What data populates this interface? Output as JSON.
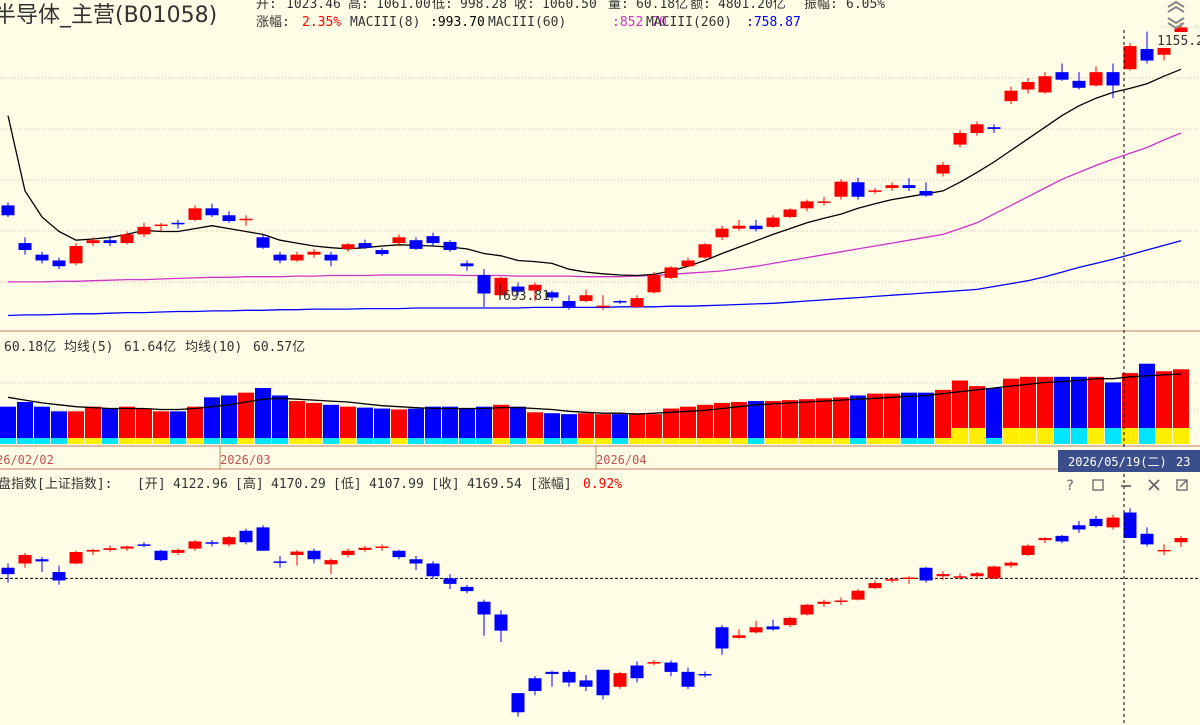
{
  "title": "半导体_主营(B01058)",
  "quote": {
    "open_label": "开:",
    "open": "1023.46",
    "high_label": "高:",
    "high": "1061.00",
    "low_label": "低:",
    "low": "998.28",
    "close_label": "收:",
    "close": "1060.50",
    "volume_label": "量:",
    "volume": "60.18亿",
    "amount_label": "额:",
    "amount": "4801.20亿",
    "amplitude_label": "振幅:",
    "amplitude": "6.05%",
    "change_label": "涨幅:",
    "change": "2.35%"
  },
  "ma": [
    {
      "label": "MACIII(8)",
      "value": ":993.70",
      "color": "#000000"
    },
    {
      "label": "MACIII(60)",
      "value": ":852.70",
      "color": "#CC33CC"
    },
    {
      "label": "MACIII(260)",
      "value": ":758.87",
      "color": "#0000FF"
    }
  ],
  "price_labels": {
    "low": "693.81",
    "high": "1155.22"
  },
  "volume_header": {
    "value": "60.18亿",
    "ma5_label": "均线(5)",
    "ma5": "61.64亿",
    "ma10_label": "均线(10)",
    "ma10": "60.57亿"
  },
  "dates": {
    "d1": "26/02/02",
    "d2": "2026/03",
    "d3": "2026/04",
    "cursor": "2026/05/19(二)",
    "cursor_tail": "23"
  },
  "index_header": {
    "prefix": "盘指数[上证指数]:",
    "open_label": "[开]",
    "open": "4122.96",
    "high_label": "[高]",
    "high": "4170.29",
    "low_label": "[低]",
    "low": "4107.99",
    "close_label": "[收]",
    "close": "4169.54",
    "change_label": "[涨幅]",
    "change": "0.92%"
  },
  "colors": {
    "up": "#FF0000",
    "down": "#0000FF",
    "bg": "#FFFDE6",
    "grid": "#E8B8A8",
    "vol_up_inner": "#FFEE00",
    "vol_down_inner": "#00E5FF",
    "ma8": "#000000",
    "ma60": "#CC33CC",
    "ma260": "#0000FF"
  },
  "icons": [
    "help-icon",
    "restore-icon",
    "minimize-icon",
    "close-icon",
    "maximize-icon",
    "chevron-up-icon",
    "chevron-down-icon"
  ],
  "chart_data": {
    "type": "candlestick",
    "price_range": [
      640,
      1175
    ],
    "ohlc": [
      [
        855,
        860,
        835,
        838
      ],
      [
        790,
        800,
        770,
        778
      ],
      [
        770,
        775,
        755,
        760
      ],
      [
        760,
        765,
        745,
        750
      ],
      [
        755,
        790,
        752,
        785
      ],
      [
        790,
        800,
        785,
        795
      ],
      [
        795,
        802,
        785,
        790
      ],
      [
        790,
        810,
        788,
        805
      ],
      [
        805,
        825,
        800,
        818
      ],
      [
        820,
        825,
        810,
        822
      ],
      [
        825,
        830,
        815,
        824
      ],
      [
        830,
        855,
        828,
        850
      ],
      [
        850,
        858,
        835,
        838
      ],
      [
        838,
        845,
        825,
        828
      ],
      [
        830,
        838,
        820,
        832
      ],
      [
        800,
        805,
        780,
        782
      ],
      [
        770,
        775,
        755,
        760
      ],
      [
        760,
        775,
        758,
        770
      ],
      [
        770,
        780,
        765,
        775
      ],
      [
        770,
        775,
        750,
        760
      ],
      [
        780,
        790,
        775,
        788
      ],
      [
        790,
        796,
        780,
        782
      ],
      [
        778,
        782,
        768,
        771
      ],
      [
        790,
        805,
        785,
        800
      ],
      [
        795,
        800,
        778,
        780
      ],
      [
        802,
        808,
        785,
        790
      ],
      [
        792,
        795,
        775,
        778
      ],
      [
        755,
        760,
        742,
        750
      ],
      [
        735,
        745,
        680,
        703
      ],
      [
        700,
        732,
        700,
        730
      ],
      [
        715,
        722,
        700,
        706
      ],
      [
        708,
        722,
        690,
        718
      ],
      [
        705,
        708,
        690,
        696
      ],
      [
        690,
        700,
        675,
        680
      ],
      [
        690,
        710,
        688,
        700
      ],
      [
        680,
        700,
        675,
        682
      ],
      [
        690,
        692,
        685,
        689
      ],
      [
        680,
        700,
        678,
        695
      ],
      [
        705,
        740,
        703,
        735
      ],
      [
        730,
        750,
        728,
        748
      ],
      [
        750,
        765,
        748,
        760
      ],
      [
        765,
        790,
        763,
        788
      ],
      [
        800,
        820,
        795,
        815
      ],
      [
        815,
        830,
        812,
        820
      ],
      [
        820,
        830,
        810,
        814
      ],
      [
        818,
        838,
        816,
        834
      ],
      [
        835,
        850,
        833,
        848
      ],
      [
        850,
        865,
        845,
        862
      ],
      [
        860,
        870,
        855,
        862
      ],
      [
        870,
        900,
        865,
        896
      ],
      [
        895,
        903,
        865,
        870
      ],
      [
        880,
        885,
        875,
        881
      ],
      [
        885,
        895,
        880,
        890
      ],
      [
        890,
        902,
        880,
        885
      ],
      [
        880,
        895,
        870,
        872
      ],
      [
        910,
        930,
        905,
        925
      ],
      [
        960,
        985,
        955,
        980
      ],
      [
        980,
        1000,
        975,
        995
      ],
      [
        990,
        995,
        980,
        987
      ],
      [
        1035,
        1060,
        1030,
        1053
      ],
      [
        1055,
        1075,
        1048,
        1068
      ],
      [
        1050,
        1085,
        1048,
        1078
      ],
      [
        1085,
        1100,
        1070,
        1072
      ],
      [
        1070,
        1085,
        1055,
        1058
      ],
      [
        1062,
        1095,
        1060,
        1085
      ],
      [
        1085,
        1100,
        1040,
        1062
      ],
      [
        1090,
        1135,
        1088,
        1130
      ],
      [
        1125,
        1155,
        1100,
        1105
      ],
      [
        1115,
        1135,
        1105,
        1130
      ],
      [
        1140,
        1170,
        1135,
        1162
      ]
    ],
    "ma8": [
      1010,
      880,
      835,
      810,
      795,
      797,
      800,
      805,
      812,
      810,
      810,
      815,
      820,
      815,
      810,
      805,
      795,
      790,
      785,
      782,
      780,
      782,
      785,
      787,
      786,
      785,
      783,
      780,
      772,
      768,
      760,
      758,
      755,
      745,
      740,
      737,
      735,
      734,
      736,
      742,
      750,
      760,
      772,
      783,
      794,
      805,
      815,
      825,
      833,
      840,
      850,
      858,
      865,
      870,
      875,
      880,
      895,
      912,
      930,
      950,
      970,
      990,
      1010,
      1027,
      1040,
      1050,
      1057,
      1065,
      1078,
      1090
    ],
    "ma60": [
      723,
      723,
      723,
      724,
      724,
      725,
      726,
      727,
      727,
      728,
      729,
      730,
      731,
      731,
      732,
      732,
      732,
      733,
      733,
      734,
      734,
      734,
      735,
      735,
      735,
      735,
      735,
      734,
      734,
      734,
      733,
      733,
      733,
      733,
      732,
      732,
      732,
      733,
      734,
      736,
      738,
      740,
      742,
      746,
      750,
      755,
      760,
      765,
      770,
      775,
      780,
      785,
      790,
      795,
      800,
      805,
      815,
      825,
      840,
      855,
      870,
      885,
      900,
      912,
      924,
      935,
      945,
      955,
      968,
      980
    ],
    "ma260": [
      665,
      666,
      666,
      667,
      668,
      668,
      669,
      670,
      670,
      671,
      672,
      672,
      673,
      673,
      674,
      674,
      675,
      675,
      676,
      676,
      676,
      677,
      677,
      677,
      678,
      678,
      678,
      678,
      678,
      678,
      678,
      679,
      679,
      679,
      679,
      679,
      680,
      680,
      680,
      681,
      681,
      682,
      683,
      684,
      685,
      686,
      688,
      690,
      692,
      694,
      696,
      698,
      700,
      702,
      704,
      706,
      708,
      710,
      715,
      720,
      725,
      732,
      740,
      748,
      755,
      762,
      770,
      778,
      786,
      794
    ],
    "volume_range": [
      0,
      90
    ],
    "volume": [
      40,
      45,
      40,
      35,
      35,
      40,
      38,
      40,
      38,
      35,
      35,
      40,
      50,
      52,
      55,
      60,
      52,
      46,
      44,
      42,
      40,
      39,
      38,
      37,
      38,
      40,
      40,
      38,
      40,
      42,
      40,
      34,
      33,
      32,
      33,
      32,
      32,
      33,
      32,
      38,
      40,
      42,
      44,
      45,
      46,
      46,
      47,
      48,
      49,
      50,
      52,
      54,
      54,
      55,
      55,
      58,
      68,
      62,
      60,
      70,
      72,
      72,
      72,
      72,
      72,
      66,
      76,
      86,
      78,
      80
    ],
    "volume_ma": [
      50,
      47,
      44,
      42,
      40,
      39,
      38,
      38,
      38,
      37,
      37,
      38,
      40,
      42,
      45,
      48,
      49,
      48,
      47,
      46,
      45,
      43,
      41,
      40,
      39,
      38,
      38,
      38,
      38,
      39,
      39,
      38,
      37,
      35,
      34,
      33,
      33,
      32,
      33,
      34,
      35,
      36,
      38,
      40,
      42,
      43,
      44,
      45,
      46,
      47,
      48,
      49,
      50,
      51,
      52,
      54,
      56,
      58,
      60,
      62,
      64,
      66,
      67,
      68,
      70,
      70,
      72,
      73,
      74,
      75
    ],
    "index_range": [
      3700,
      4300
    ],
    "index_ohlc": [
      [
        4070,
        4080,
        4035,
        4055
      ],
      [
        4080,
        4105,
        4070,
        4100
      ],
      [
        4090,
        4095,
        4060,
        4085
      ],
      [
        4060,
        4075,
        4030,
        4040
      ],
      [
        4080,
        4110,
        4078,
        4107
      ],
      [
        4108,
        4115,
        4100,
        4112
      ],
      [
        4112,
        4122,
        4108,
        4116
      ],
      [
        4115,
        4122,
        4110,
        4120
      ],
      [
        4125,
        4130,
        4118,
        4122
      ],
      [
        4110,
        4112,
        4085,
        4088
      ],
      [
        4105,
        4115,
        4100,
        4112
      ],
      [
        4115,
        4135,
        4110,
        4132
      ],
      [
        4130,
        4135,
        4120,
        4127
      ],
      [
        4125,
        4145,
        4120,
        4142
      ],
      [
        4157,
        4162,
        4125,
        4130
      ],
      [
        4165,
        4170,
        4110,
        4110
      ],
      [
        4085,
        4098,
        4070,
        4082
      ],
      [
        4100,
        4112,
        4075,
        4108
      ],
      [
        4110,
        4115,
        4080,
        4090
      ],
      [
        4078,
        4092,
        4055,
        4088
      ],
      [
        4100,
        4115,
        4095,
        4110
      ],
      [
        4112,
        4122,
        4108,
        4117
      ],
      [
        4118,
        4125,
        4110,
        4120
      ],
      [
        4110,
        4112,
        4090,
        4095
      ],
      [
        4090,
        4098,
        4065,
        4080
      ],
      [
        4080,
        4085,
        4045,
        4050
      ],
      [
        4045,
        4055,
        4020,
        4032
      ],
      [
        4025,
        4030,
        4010,
        4015
      ],
      [
        3990,
        3995,
        3910,
        3960
      ],
      [
        3960,
        3970,
        3895,
        3922
      ],
      [
        3775,
        3775,
        3720,
        3730
      ],
      [
        3810,
        3815,
        3770,
        3780
      ],
      [
        3825,
        3828,
        3790,
        3820
      ],
      [
        3825,
        3830,
        3790,
        3800
      ],
      [
        3805,
        3818,
        3780,
        3790
      ],
      [
        3830,
        3830,
        3760,
        3770
      ],
      [
        3790,
        3825,
        3785,
        3822
      ],
      [
        3840,
        3850,
        3800,
        3810
      ],
      [
        3845,
        3853,
        3841,
        3848
      ],
      [
        3847,
        3852,
        3815,
        3825
      ],
      [
        3825,
        3835,
        3785,
        3790
      ],
      [
        3820,
        3826,
        3812,
        3818
      ],
      [
        3930,
        3935,
        3865,
        3880
      ],
      [
        3905,
        3925,
        3903,
        3911
      ],
      [
        3918,
        3945,
        3915,
        3930
      ],
      [
        3932,
        3948,
        3922,
        3925
      ],
      [
        3935,
        3955,
        3930,
        3952
      ],
      [
        3960,
        3985,
        3958,
        3983
      ],
      [
        3985,
        3995,
        3978,
        3990
      ],
      [
        3990,
        4000,
        3982,
        3993
      ],
      [
        3995,
        4020,
        3993,
        4016
      ],
      [
        4022,
        4040,
        4020,
        4034
      ],
      [
        4040,
        4047,
        4035,
        4043
      ],
      [
        4045,
        4050,
        4032,
        4047
      ],
      [
        4070,
        4072,
        4035,
        4040
      ],
      [
        4050,
        4062,
        4042,
        4055
      ],
      [
        4048,
        4057,
        4042,
        4050
      ],
      [
        4050,
        4060,
        4045,
        4057
      ],
      [
        4045,
        4075,
        4043,
        4073
      ],
      [
        4075,
        4085,
        4070,
        4082
      ],
      [
        4100,
        4125,
        4098,
        4122
      ],
      [
        4135,
        4142,
        4128,
        4140
      ],
      [
        4145,
        4147,
        4128,
        4132
      ],
      [
        4170,
        4180,
        4152,
        4160
      ],
      [
        4185,
        4192,
        4165,
        4168
      ],
      [
        4165,
        4195,
        4160,
        4188
      ],
      [
        4200,
        4210,
        4140,
        4140
      ],
      [
        4150,
        4165,
        4120,
        4125
      ],
      [
        4110,
        4125,
        4100,
        4112
      ],
      [
        4130,
        4145,
        4118,
        4140
      ]
    ],
    "index_reference": 4045
  }
}
